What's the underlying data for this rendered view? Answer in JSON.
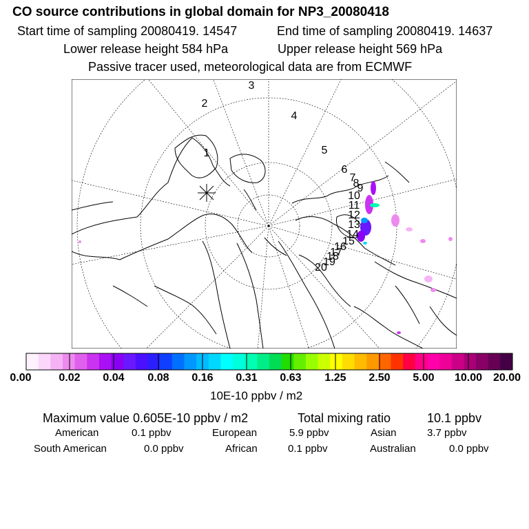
{
  "header": {
    "title": "CO  source contributions in global domain for NP3_20080418",
    "start_label": "Start time of sampling 20080419. 14547",
    "end_label": "End time of sampling 20080419. 14637",
    "lower_label": "Lower release height  584 hPa",
    "upper_label": "Upper release height  569 hPa",
    "tracer_label": "Passive tracer used, meteorological data are from ECMWF"
  },
  "map": {
    "trajectory_labels": [
      "1",
      "2",
      "3",
      "4",
      "5",
      "6",
      "7",
      "8",
      "9",
      "10",
      "11",
      "12",
      "13",
      "14",
      "15",
      "16",
      "17",
      "18",
      "19",
      "20"
    ]
  },
  "colorbar": {
    "tick_labels": [
      "0.00",
      "0.02",
      "0.04",
      "0.08",
      "0.16",
      "0.31",
      "0.63",
      "1.25",
      "2.50",
      "5.00",
      "10.00",
      "20.00"
    ],
    "unit_label": "10E-10 ppbv / m2",
    "colors": [
      "#fff2ff",
      "#fbd7fb",
      "#f5b3f5",
      "#ee8aee",
      "#e060ee",
      "#cc33f0",
      "#aa10f5",
      "#8a00f5",
      "#6a18ff",
      "#4a10ff",
      "#2a20ff",
      "#1040ff",
      "#0070ff",
      "#0098ff",
      "#00bbff",
      "#00d8ff",
      "#00ffff",
      "#00ffdd",
      "#00ffb4",
      "#00ee88",
      "#00dd55",
      "#22dd00",
      "#66ee00",
      "#99ff00",
      "#ccff00",
      "#ffff00",
      "#ffdd00",
      "#ffbb00",
      "#ff9900",
      "#ff6600",
      "#ff3300",
      "#ff0044",
      "#ff0088",
      "#ff00aa",
      "#ee0099",
      "#cc0088",
      "#aa0077",
      "#880066",
      "#660055",
      "#440044"
    ]
  },
  "summary": {
    "max_value": "Maximum value  0.605E-10 ppbv / m2",
    "total": "Total mixing ratio",
    "total_value": "10.1 ppbv",
    "sources": [
      {
        "name": "American",
        "value": "0.1 ppbv"
      },
      {
        "name": "European",
        "value": "5.9 ppbv"
      },
      {
        "name": "Asian",
        "value": "3.7 ppbv"
      },
      {
        "name": "South American",
        "value": "0.0 ppbv"
      },
      {
        "name": "African",
        "value": "0.1 ppbv"
      },
      {
        "name": "Australian",
        "value": "0.0 ppbv"
      }
    ]
  }
}
